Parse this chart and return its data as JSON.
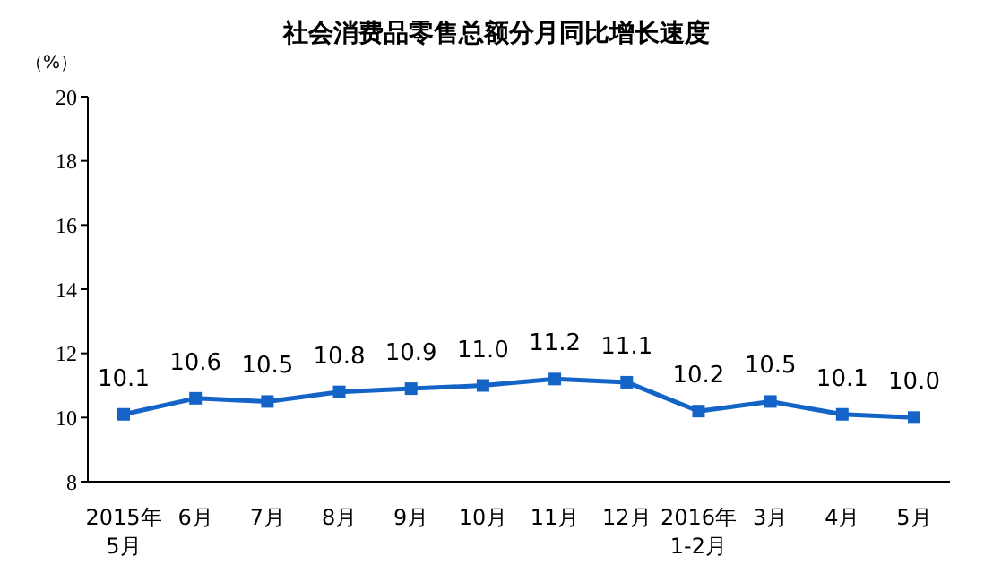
{
  "chart_data": {
    "type": "line",
    "title": "社会消费品零售总额分月同比增长速度",
    "ylabel": "（%）",
    "categories": [
      "2015年\n5月",
      "6月",
      "7月",
      "8月",
      "9月",
      "10月",
      "11月",
      "12月",
      "2016年\n1-2月",
      "3月",
      "4月",
      "5月"
    ],
    "series": [
      {
        "color": "#1464c8",
        "values": [
          10.1,
          10.6,
          10.5,
          10.8,
          10.9,
          11.0,
          11.2,
          11.1,
          10.2,
          10.5,
          10.1,
          10.0
        ],
        "value_labels": [
          "10.1",
          "10.6",
          "10.5",
          "10.8",
          "10.9",
          "11.0",
          "11.2",
          "11.1",
          "10.2",
          "10.5",
          "10.1",
          "10.0"
        ]
      }
    ],
    "ylim": [
      8,
      20
    ],
    "yticks": [
      8,
      10,
      12,
      14,
      16,
      18,
      20
    ],
    "grid": false,
    "legend": false,
    "marker": "square",
    "line_style": "solid"
  }
}
